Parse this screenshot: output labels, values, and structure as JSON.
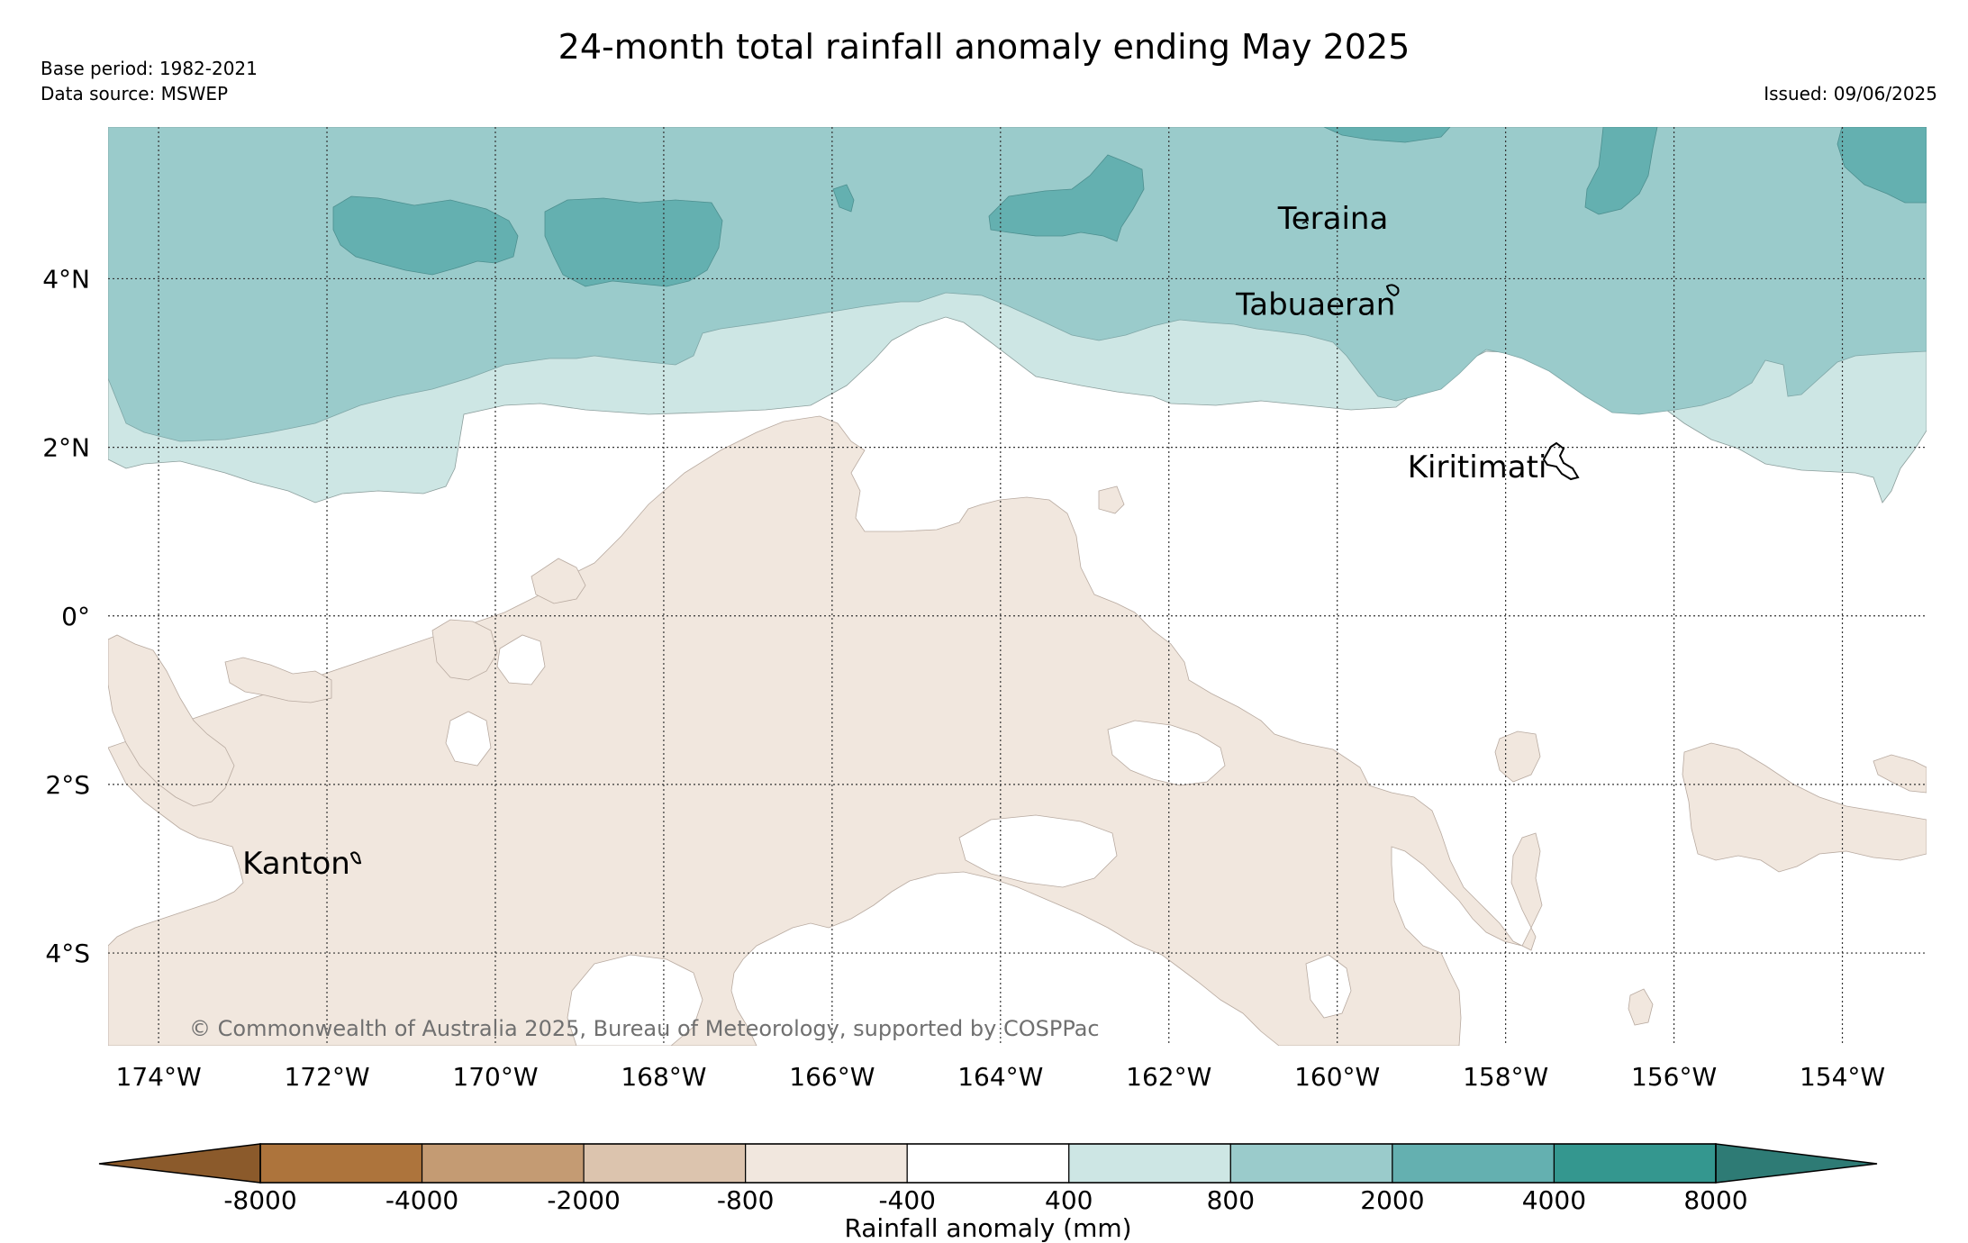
{
  "header": {
    "title": "24-month total rainfall anomaly ending May 2025",
    "base_period": "Base period: 1982-2021",
    "data_source": "Data source: MSWEP",
    "issued": "Issued: 09/06/2025"
  },
  "map": {
    "lon_range": [
      -174.6,
      -153.0
    ],
    "lat_range": [
      -5.1,
      5.8
    ],
    "lon_ticks": [
      {
        "value": -174,
        "label": "174°W"
      },
      {
        "value": -172,
        "label": "172°W"
      },
      {
        "value": -170,
        "label": "170°W"
      },
      {
        "value": -168,
        "label": "168°W"
      },
      {
        "value": -166,
        "label": "166°W"
      },
      {
        "value": -164,
        "label": "164°W"
      },
      {
        "value": -162,
        "label": "162°W"
      },
      {
        "value": -160,
        "label": "160°W"
      },
      {
        "value": -158,
        "label": "158°W"
      },
      {
        "value": -156,
        "label": "156°W"
      },
      {
        "value": -154,
        "label": "154°W"
      }
    ],
    "lat_ticks": [
      {
        "value": 4,
        "label": "4°N"
      },
      {
        "value": 2,
        "label": "2°N"
      },
      {
        "value": 0,
        "label": "0°"
      },
      {
        "value": -2,
        "label": "2°S"
      },
      {
        "value": -4,
        "label": "4°S"
      }
    ],
    "gridlines": true,
    "islands": [
      {
        "name": "Teraina",
        "lon": -159.4,
        "lat": 4.7
      },
      {
        "name": "Tabuaeran",
        "lon": -159.3,
        "lat": 3.85
      },
      {
        "name": "Kiritimati",
        "lon": -157.4,
        "lat": 1.9
      },
      {
        "name": "Kanton",
        "lon": -171.7,
        "lat": -2.8
      }
    ],
    "copyright": "© Commonwealth of Australia 2025, Bureau of Meteorology, supported by COSPPac"
  },
  "colorbar": {
    "label": "Rainfall anomaly (mm)",
    "tick_labels": [
      "-8000",
      "-4000",
      "-2000",
      "-800",
      "-400",
      "400",
      "800",
      "2000",
      "4000",
      "8000"
    ],
    "extend_low_color": "#8b5a2b",
    "extend_high_color": "#2e7b75",
    "colors": [
      "#ad743c",
      "#c49b73",
      "#dcc4ae",
      "#f1e7de",
      "#ffffff",
      "#cde6e4",
      "#9acbcb",
      "#64b0b0",
      "#34978f"
    ]
  }
}
